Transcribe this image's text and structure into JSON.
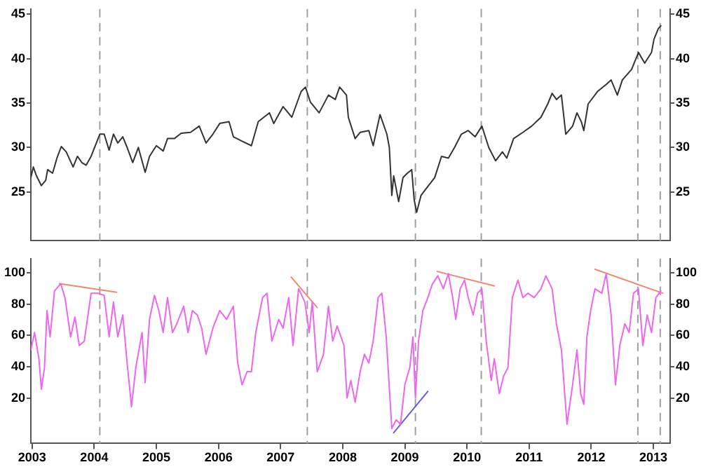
{
  "chart_data": [
    {
      "type": "line",
      "xlim": [
        2002.98,
        2013.27
      ],
      "ylim": [
        19.5,
        45.6
      ],
      "yticks": [
        25,
        30,
        35,
        40,
        45
      ],
      "y2lim": [
        19.5,
        45.6
      ],
      "y2ticks": [
        25,
        30,
        35,
        40,
        45
      ],
      "tick_labels": "y",
      "grid": false,
      "legend": false,
      "marker": "none",
      "line_style": "solid",
      "ref_lines": [
        {
          "axis": "x",
          "value": 2004.09,
          "color": "#a0a0a0",
          "line_style": "dashed"
        },
        {
          "axis": "x",
          "value": 2007.43,
          "color": "#a0a0a0",
          "line_style": "dashed"
        },
        {
          "axis": "x",
          "value": 2009.17,
          "color": "#a0a0a0",
          "line_style": "dashed"
        },
        {
          "axis": "x",
          "value": 2010.23,
          "color": "#a0a0a0",
          "line_style": "dashed"
        },
        {
          "axis": "x",
          "value": 2012.75,
          "color": "#a0a0a0",
          "line_style": "dashed"
        },
        {
          "axis": "x",
          "value": 2013.11,
          "color": "#a0a0a0",
          "line_style": "dashed"
        }
      ],
      "series": [
        {
          "color": "#333333",
          "x": [
            2002.98,
            2003.02,
            2003.07,
            2003.15,
            2003.22,
            2003.25,
            2003.33,
            2003.4,
            2003.47,
            2003.55,
            2003.66,
            2003.73,
            2003.8,
            2003.87,
            2003.95,
            2004.09,
            2004.16,
            2004.24,
            2004.31,
            2004.38,
            2004.46,
            2004.53,
            2004.62,
            2004.71,
            2004.82,
            2004.89,
            2005.0,
            2005.11,
            2005.18,
            2005.29,
            2005.4,
            2005.55,
            2005.69,
            2005.8,
            2005.91,
            2006.02,
            2006.17,
            2006.24,
            2006.38,
            2006.53,
            2006.64,
            2006.82,
            2006.89,
            2007.04,
            2007.18,
            2007.33,
            2007.4,
            2007.48,
            2007.62,
            2007.77,
            2007.88,
            2007.95,
            2008.06,
            2008.09,
            2008.2,
            2008.28,
            2008.42,
            2008.49,
            2008.6,
            2008.71,
            2008.75,
            2008.79,
            2008.82,
            2008.9,
            2008.97,
            2009.04,
            2009.11,
            2009.15,
            2009.19,
            2009.26,
            2009.37,
            2009.48,
            2009.59,
            2009.7,
            2009.8,
            2009.91,
            2010.02,
            2010.13,
            2010.24,
            2010.35,
            2010.46,
            2010.57,
            2010.64,
            2010.75,
            2010.9,
            2011.04,
            2011.19,
            2011.3,
            2011.37,
            2011.44,
            2011.52,
            2011.59,
            2011.7,
            2011.77,
            2011.84,
            2011.88,
            2011.95,
            2012.1,
            2012.24,
            2012.32,
            2012.42,
            2012.5,
            2012.65,
            2012.76,
            2012.86,
            2012.97,
            2013.01,
            2013.08,
            2013.12
          ],
          "values": [
            26.6,
            27.8,
            26.8,
            25.7,
            26.3,
            27.5,
            27.1,
            28.8,
            30.1,
            29.5,
            27.8,
            29.0,
            28.3,
            28.0,
            29.0,
            31.5,
            31.5,
            29.7,
            31.5,
            30.5,
            31.2,
            30.0,
            28.3,
            30.0,
            27.2,
            29.0,
            30.2,
            29.6,
            31.0,
            31.0,
            31.6,
            31.7,
            32.4,
            30.5,
            31.5,
            32.7,
            32.9,
            31.2,
            30.7,
            30.2,
            32.9,
            33.9,
            32.7,
            34.6,
            33.4,
            36.3,
            36.8,
            35.1,
            33.9,
            35.9,
            35.4,
            36.8,
            35.9,
            33.4,
            31.0,
            31.7,
            31.9,
            30.2,
            33.7,
            31.5,
            30.0,
            24.6,
            26.8,
            23.9,
            26.6,
            27.1,
            27.5,
            24.1,
            22.7,
            24.6,
            25.6,
            26.6,
            29.0,
            28.8,
            30.0,
            31.5,
            31.9,
            31.2,
            32.4,
            30.0,
            28.5,
            29.5,
            28.8,
            31.0,
            31.7,
            32.4,
            33.4,
            34.9,
            36.1,
            35.4,
            35.9,
            31.5,
            32.4,
            33.9,
            32.9,
            31.9,
            34.9,
            36.3,
            37.1,
            37.6,
            35.9,
            37.6,
            38.8,
            40.7,
            39.5,
            40.7,
            42.2,
            43.4,
            43.7
          ]
        }
      ]
    },
    {
      "type": "line",
      "xlim": [
        2002.98,
        2013.27
      ],
      "xticks": [
        2003,
        2004,
        2005,
        2006,
        2007,
        2008,
        2009,
        2010,
        2011,
        2012,
        2013
      ],
      "ylim": [
        -9,
        109
      ],
      "yticks": [
        20,
        40,
        60,
        80,
        100
      ],
      "y2lim": [
        -9,
        109
      ],
      "y2ticks": [
        20,
        40,
        60,
        80,
        100
      ],
      "grid": false,
      "legend": false,
      "marker": "none",
      "line_style": "solid",
      "ref_lines": [
        {
          "axis": "x",
          "value": 2004.09,
          "color": "#a0a0a0",
          "line_style": "dashed"
        },
        {
          "axis": "x",
          "value": 2007.43,
          "color": "#a0a0a0",
          "line_style": "dashed"
        },
        {
          "axis": "x",
          "value": 2009.17,
          "color": "#a0a0a0",
          "line_style": "dashed"
        },
        {
          "axis": "x",
          "value": 2010.23,
          "color": "#a0a0a0",
          "line_style": "dashed"
        },
        {
          "axis": "x",
          "value": 2012.75,
          "color": "#a0a0a0",
          "line_style": "dashed"
        },
        {
          "axis": "x",
          "value": 2013.11,
          "color": "#a0a0a0",
          "line_style": "dashed"
        }
      ],
      "series": [
        {
          "color": "#ee66ee",
          "x": [
            2002.98,
            2003.04,
            2003.11,
            2003.15,
            2003.2,
            2003.24,
            2003.29,
            2003.36,
            2003.46,
            2003.53,
            2003.62,
            2003.69,
            2003.76,
            2003.84,
            2003.95,
            2004.06,
            2004.16,
            2004.24,
            2004.31,
            2004.38,
            2004.46,
            2004.53,
            2004.6,
            2004.67,
            2004.77,
            2004.82,
            2004.89,
            2004.97,
            2005.04,
            2005.11,
            2005.18,
            2005.26,
            2005.33,
            2005.44,
            2005.51,
            2005.58,
            2005.66,
            2005.73,
            2005.8,
            2005.91,
            2006.02,
            2006.13,
            2006.24,
            2006.31,
            2006.38,
            2006.46,
            2006.53,
            2006.6,
            2006.71,
            2006.78,
            2006.86,
            2006.97,
            2007.04,
            2007.13,
            2007.2,
            2007.29,
            2007.39,
            2007.46,
            2007.51,
            2007.59,
            2007.69,
            2007.77,
            2007.84,
            2007.91,
            2008.02,
            2008.07,
            2008.13,
            2008.2,
            2008.28,
            2008.35,
            2008.42,
            2008.49,
            2008.57,
            2008.63,
            2008.7,
            2008.79,
            2008.86,
            2008.93,
            2009.0,
            2009.08,
            2009.13,
            2009.17,
            2009.22,
            2009.29,
            2009.37,
            2009.44,
            2009.53,
            2009.62,
            2009.7,
            2009.77,
            2009.82,
            2009.89,
            2009.96,
            2010.02,
            2010.1,
            2010.17,
            2010.24,
            2010.31,
            2010.39,
            2010.44,
            2010.52,
            2010.59,
            2010.66,
            2010.73,
            2010.82,
            2010.9,
            2010.98,
            2011.08,
            2011.19,
            2011.27,
            2011.37,
            2011.44,
            2011.52,
            2011.61,
            2011.7,
            2011.77,
            2011.83,
            2011.88,
            2011.93,
            2011.99,
            2012.06,
            2012.17,
            2012.24,
            2012.32,
            2012.39,
            2012.46,
            2012.54,
            2012.61,
            2012.68,
            2012.76,
            2012.83,
            2012.9,
            2012.97,
            2013.04,
            2013.12
          ],
          "values": [
            50.7,
            61.8,
            45.1,
            25.6,
            39.6,
            75.8,
            59,
            88.3,
            93,
            84,
            59,
            71.6,
            53.5,
            56.3,
            86.9,
            86.9,
            85.5,
            59,
            81.3,
            59,
            73,
            42.3,
            14.5,
            39.6,
            61.8,
            29.8,
            70.2,
            85.5,
            75.8,
            61.8,
            84.1,
            61.8,
            67.4,
            78.6,
            61.8,
            75.8,
            73,
            64.6,
            47.9,
            64.6,
            75.8,
            70.2,
            78.6,
            42.3,
            28.4,
            36.8,
            36.8,
            61.8,
            84.1,
            86.9,
            56.3,
            70.2,
            64.6,
            84.1,
            53.5,
            89.7,
            81.3,
            61.8,
            81.3,
            36.8,
            47.9,
            78.6,
            56.3,
            66,
            53.5,
            20,
            31.2,
            17.3,
            36.8,
            47.9,
            42.3,
            56.3,
            84.1,
            86.9,
            59,
            0.6,
            6.1,
            3.3,
            28.4,
            39.6,
            59,
            20,
            56.3,
            75.8,
            84.1,
            92.5,
            98,
            89.7,
            99.4,
            84.1,
            70.2,
            89.7,
            95.3,
            84.1,
            73,
            86.9,
            89.7,
            56.3,
            31.2,
            45.1,
            22.8,
            34,
            39.6,
            84.1,
            95.3,
            84.1,
            86.9,
            84.1,
            89.7,
            98,
            89.7,
            67.4,
            50.7,
            3.3,
            28.4,
            50.7,
            22.8,
            15.9,
            59,
            75.8,
            89.7,
            86.9,
            99.4,
            73,
            28.4,
            53.5,
            67.4,
            61.8,
            86.9,
            89.7,
            53.5,
            73,
            61.8,
            84.1,
            88.3
          ]
        },
        {
          "color": "#f08870",
          "x": [
            2003.44,
            2004.36
          ],
          "values": [
            93,
            87.5
          ]
        },
        {
          "color": "#f08870",
          "x": [
            2007.17,
            2007.59
          ],
          "values": [
            97.2,
            77.7
          ]
        },
        {
          "color": "#f08870",
          "x": [
            2009.52,
            2010.44
          ],
          "values": [
            100.8,
            91.6
          ]
        },
        {
          "color": "#f08870",
          "x": [
            2012.06,
            2013.15
          ],
          "values": [
            102.2,
            86.9
          ]
        },
        {
          "color": "#6060e0",
          "x": [
            2008.82,
            2009.37
          ],
          "values": [
            -2.2,
            24.2
          ]
        }
      ]
    }
  ]
}
